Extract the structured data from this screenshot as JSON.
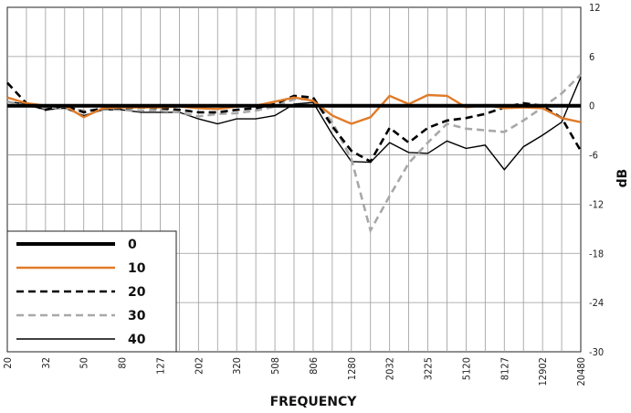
{
  "chart_data": {
    "type": "line",
    "xlabel": "FREQUENCY",
    "ylabel": "dB",
    "ylim": [
      -30,
      12
    ],
    "yticks": [
      12,
      6,
      0,
      -6,
      -12,
      -18,
      -24,
      -30
    ],
    "grid": true,
    "legend_position": "bottom-left",
    "x": [
      "20",
      "25",
      "32",
      "40",
      "50",
      "63",
      "80",
      "100",
      "127",
      "160",
      "202",
      "254",
      "320",
      "404",
      "508",
      "640",
      "806",
      "1016",
      "1280",
      "1613",
      "2032",
      "2560",
      "3225",
      "4064",
      "5120",
      "6451",
      "8127",
      "10240",
      "12902",
      "16256",
      "20480"
    ],
    "x_tick_labels": [
      "20",
      "32",
      "50",
      "80",
      "127",
      "202",
      "320",
      "508",
      "806",
      "1280",
      "2032",
      "3225",
      "5120",
      "8127",
      "12902",
      "20480"
    ],
    "series": [
      {
        "name": "0",
        "color": "#000000",
        "style": "solid-thick",
        "values": [
          0,
          0,
          0,
          0,
          0,
          0,
          0,
          0,
          0,
          0,
          0,
          0,
          0,
          0,
          0,
          0,
          0,
          0,
          0,
          0,
          0,
          0,
          0,
          0,
          0,
          0,
          0,
          0,
          0,
          0,
          0
        ]
      },
      {
        "name": "10",
        "color": "#e07b28",
        "style": "solid",
        "values": [
          1.0,
          0.3,
          0.0,
          0.0,
          -1.4,
          -0.3,
          -0.2,
          -0.2,
          -0.2,
          -0.1,
          -0.3,
          -0.4,
          -0.1,
          0.0,
          0.5,
          1.0,
          0.6,
          -1.2,
          -2.2,
          -1.4,
          1.2,
          0.2,
          1.3,
          1.2,
          -0.2,
          0.1,
          -0.3,
          -0.2,
          -0.3,
          -1.5,
          -2.0
        ]
      },
      {
        "name": "20",
        "color": "#000000",
        "style": "dashed",
        "values": [
          2.8,
          0.3,
          -0.5,
          0.0,
          -0.8,
          -0.3,
          -0.3,
          -0.2,
          -0.3,
          -0.5,
          -0.8,
          -0.8,
          -0.5,
          -0.3,
          0.2,
          1.2,
          1.0,
          -2.5,
          -5.5,
          -6.8,
          -2.7,
          -4.5,
          -2.7,
          -1.8,
          -1.5,
          -1.0,
          -0.2,
          0.3,
          0.0,
          -1.5,
          -5.5
        ]
      },
      {
        "name": "30",
        "color": "#a8a8a8",
        "style": "dashed",
        "values": [
          0.5,
          0.0,
          -0.3,
          -0.3,
          -0.6,
          -0.4,
          -0.5,
          -0.6,
          -0.6,
          -0.8,
          -1.3,
          -1.0,
          -0.9,
          -0.6,
          -0.1,
          0.8,
          0.8,
          -2.0,
          -6.5,
          -15.2,
          -11.0,
          -7.0,
          -4.5,
          -2.2,
          -2.8,
          -3.0,
          -3.2,
          -1.8,
          -0.2,
          1.5,
          3.8
        ]
      },
      {
        "name": "40",
        "color": "#000000",
        "style": "solid-thin",
        "values": [
          0.5,
          0.2,
          -0.5,
          -0.3,
          -1.2,
          -0.5,
          -0.5,
          -0.8,
          -0.8,
          -0.8,
          -1.6,
          -2.2,
          -1.6,
          -1.6,
          -1.2,
          0.2,
          0.4,
          -3.5,
          -6.8,
          -6.9,
          -4.5,
          -5.7,
          -5.8,
          -4.3,
          -5.2,
          -4.8,
          -7.8,
          -5.0,
          -3.6,
          -2.0,
          3.5
        ]
      }
    ]
  }
}
